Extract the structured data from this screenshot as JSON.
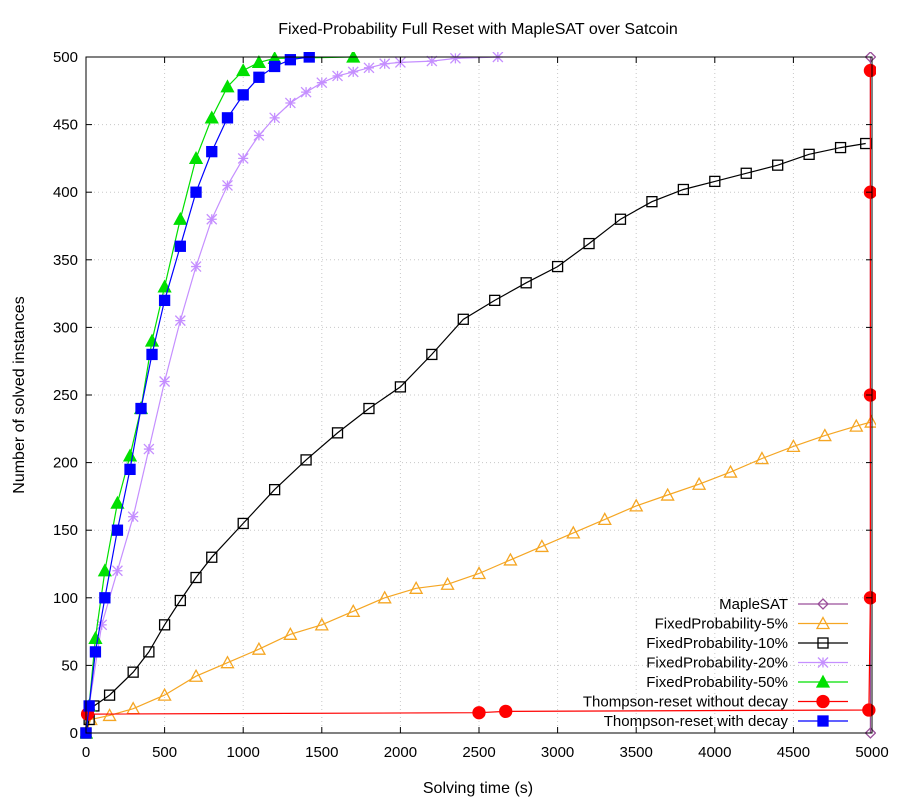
{
  "chart_data": {
    "type": "line",
    "title": "Fixed-Probability Full Reset with MapleSAT over Satcoin",
    "xlabel": "Solving time (s)",
    "ylabel": "Number of solved instances",
    "xlim": [
      0,
      5000
    ],
    "ylim": [
      0,
      500
    ],
    "xticks": [
      0,
      500,
      1000,
      1500,
      2000,
      2500,
      3000,
      3500,
      4000,
      4500,
      5000
    ],
    "yticks": [
      0,
      50,
      100,
      150,
      200,
      250,
      300,
      350,
      400,
      450,
      500
    ],
    "xtick_labels": [
      "0",
      "500",
      "1000",
      "1500",
      "2000",
      "2500",
      "3000",
      "3500",
      "4000",
      "4500",
      "5000"
    ],
    "ytick_labels": [
      "0",
      "50",
      "100",
      "150",
      "200",
      "250",
      "300",
      "350",
      "400",
      "450",
      "500"
    ],
    "grid": true,
    "legend_position": "bottom-right",
    "series": [
      {
        "name": "MapleSAT",
        "color": "#9a4f9a",
        "marker": "diamond",
        "filled": false,
        "points": [
          [
            4990,
            0
          ],
          [
            4990,
            100
          ],
          [
            4990,
            250
          ],
          [
            4990,
            400
          ],
          [
            4990,
            500
          ]
        ]
      },
      {
        "name": "FixedProbability-5%",
        "color": "#f5a623",
        "marker": "triangle",
        "filled": false,
        "points": [
          [
            0,
            0
          ],
          [
            30,
            10
          ],
          [
            150,
            13
          ],
          [
            300,
            18
          ],
          [
            500,
            28
          ],
          [
            700,
            42
          ],
          [
            900,
            52
          ],
          [
            1100,
            62
          ],
          [
            1300,
            73
          ],
          [
            1500,
            80
          ],
          [
            1700,
            90
          ],
          [
            1900,
            100
          ],
          [
            2100,
            107
          ],
          [
            2300,
            110
          ],
          [
            2500,
            118
          ],
          [
            2700,
            128
          ],
          [
            2900,
            138
          ],
          [
            3100,
            148
          ],
          [
            3300,
            158
          ],
          [
            3500,
            168
          ],
          [
            3700,
            176
          ],
          [
            3900,
            184
          ],
          [
            4100,
            193
          ],
          [
            4300,
            203
          ],
          [
            4500,
            212
          ],
          [
            4700,
            220
          ],
          [
            4900,
            227
          ],
          [
            4995,
            230
          ]
        ]
      },
      {
        "name": "FixedProbability-10%",
        "color": "#000000",
        "marker": "square",
        "filled": false,
        "points": [
          [
            0,
            0
          ],
          [
            20,
            10
          ],
          [
            50,
            20
          ],
          [
            150,
            28
          ],
          [
            300,
            45
          ],
          [
            400,
            60
          ],
          [
            500,
            80
          ],
          [
            600,
            98
          ],
          [
            700,
            115
          ],
          [
            800,
            130
          ],
          [
            1000,
            155
          ],
          [
            1200,
            180
          ],
          [
            1400,
            202
          ],
          [
            1600,
            222
          ],
          [
            1800,
            240
          ],
          [
            2000,
            256
          ],
          [
            2200,
            280
          ],
          [
            2400,
            306
          ],
          [
            2600,
            320
          ],
          [
            2800,
            333
          ],
          [
            3000,
            345
          ],
          [
            3200,
            362
          ],
          [
            3400,
            380
          ],
          [
            3600,
            393
          ],
          [
            3800,
            402
          ],
          [
            4000,
            408
          ],
          [
            4200,
            414
          ],
          [
            4400,
            420
          ],
          [
            4600,
            428
          ],
          [
            4800,
            433
          ],
          [
            4960,
            436
          ]
        ]
      },
      {
        "name": "FixedProbability-20%",
        "color": "#c58fff",
        "marker": "star",
        "filled": false,
        "points": [
          [
            0,
            0
          ],
          [
            20,
            20
          ],
          [
            100,
            80
          ],
          [
            200,
            120
          ],
          [
            300,
            160
          ],
          [
            400,
            210
          ],
          [
            500,
            260
          ],
          [
            600,
            305
          ],
          [
            700,
            345
          ],
          [
            800,
            380
          ],
          [
            900,
            405
          ],
          [
            1000,
            425
          ],
          [
            1100,
            442
          ],
          [
            1200,
            455
          ],
          [
            1300,
            466
          ],
          [
            1400,
            474
          ],
          [
            1500,
            481
          ],
          [
            1600,
            486
          ],
          [
            1700,
            489
          ],
          [
            1800,
            492
          ],
          [
            1900,
            495
          ],
          [
            2000,
            496
          ],
          [
            2200,
            497
          ],
          [
            2350,
            499
          ],
          [
            2620,
            500
          ]
        ]
      },
      {
        "name": "FixedProbability-50%",
        "color": "#00e000",
        "marker": "triangle",
        "filled": true,
        "points": [
          [
            0,
            0
          ],
          [
            20,
            20
          ],
          [
            60,
            70
          ],
          [
            120,
            120
          ],
          [
            200,
            170
          ],
          [
            280,
            205
          ],
          [
            350,
            240
          ],
          [
            420,
            290
          ],
          [
            500,
            330
          ],
          [
            600,
            380
          ],
          [
            700,
            425
          ],
          [
            800,
            455
          ],
          [
            900,
            478
          ],
          [
            1000,
            490
          ],
          [
            1100,
            496
          ],
          [
            1200,
            499
          ],
          [
            1700,
            500
          ]
        ]
      },
      {
        "name": "Thompson-reset without decay",
        "color": "#ff0000",
        "marker": "circle",
        "filled": true,
        "points": [
          [
            10,
            14
          ],
          [
            2500,
            15
          ],
          [
            2670,
            16
          ],
          [
            4980,
            17
          ],
          [
            4990,
            100
          ],
          [
            4990,
            250
          ],
          [
            4990,
            400
          ],
          [
            4990,
            490
          ]
        ]
      },
      {
        "name": "Thompson-reset with decay",
        "color": "#0000ff",
        "marker": "square",
        "filled": true,
        "points": [
          [
            0,
            0
          ],
          [
            20,
            20
          ],
          [
            60,
            60
          ],
          [
            120,
            100
          ],
          [
            200,
            150
          ],
          [
            280,
            195
          ],
          [
            350,
            240
          ],
          [
            420,
            280
          ],
          [
            500,
            320
          ],
          [
            600,
            360
          ],
          [
            700,
            400
          ],
          [
            800,
            430
          ],
          [
            900,
            455
          ],
          [
            1000,
            472
          ],
          [
            1100,
            485
          ],
          [
            1200,
            493
          ],
          [
            1300,
            498
          ],
          [
            1420,
            500
          ]
        ]
      }
    ]
  }
}
